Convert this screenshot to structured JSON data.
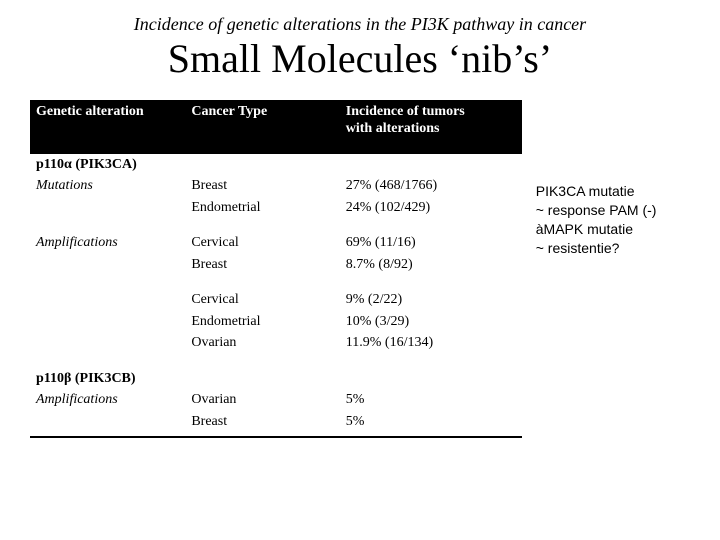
{
  "subtitle": "Incidence of genetic alterations in the PI3K pathway in cancer",
  "title": "Small Molecules ‘nib’s’",
  "table": {
    "headers": {
      "c1": "Genetic alteration",
      "c2": "Cancer Type",
      "c3_l1": "Incidence of tumors",
      "c3_l2": "with alterations"
    },
    "p110a_label_bold": "p110α (PIK3CA)",
    "mutations_label": "Mutations",
    "p110a_mut": {
      "ct1": "Breast",
      "inc1": "27% (468/1766)",
      "ct2": "Endometrial",
      "inc2": "24% (102/429)"
    },
    "amplifications_label": "Amplifications",
    "p110a_amp1": {
      "ct1": "Cervical",
      "inc1": "69% (11/16)",
      "ct2": "Breast",
      "inc2": "8.7% (8/92)"
    },
    "p110a_amp2": {
      "ct1": "Cervical",
      "inc1": "9% (2/22)",
      "ct2": "Endometrial",
      "inc2": "10% (3/29)",
      "ct3": "Ovarian",
      "inc3": "11.9% (16/134)"
    },
    "p110b_label_bold": "p110β (PIK3CB)",
    "p110b_amp_label": "Amplifications",
    "p110b_amp": {
      "ct1": "Ovarian",
      "inc1": "5%",
      "ct2": "Breast",
      "inc2": "5%"
    }
  },
  "sidenote": {
    "l1": "PIK3CA mutatie",
    "l2": "~ response PAM (-)",
    "l3a": "à",
    "l3b": "MAPK mutatie",
    "l4": "~ resistentie?"
  }
}
